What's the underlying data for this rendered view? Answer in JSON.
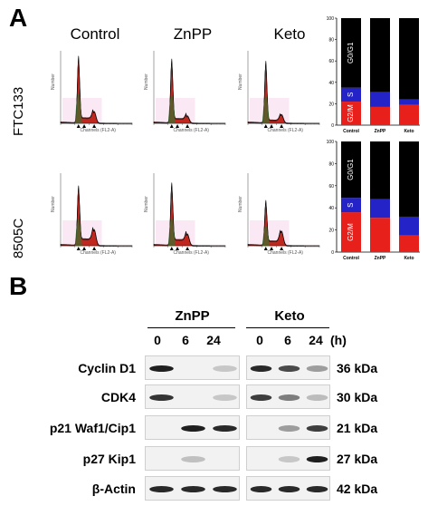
{
  "panel_a": {
    "letter": "A",
    "conditions": [
      "Control",
      "ZnPP",
      "Keto"
    ],
    "cell_lines": [
      "FTC133",
      "8505C"
    ],
    "histogram_axis": {
      "x_title": "Channels (FL2-A)",
      "y_title": "Number"
    },
    "bar_chart": {
      "x_ticks": [
        "Control",
        "ZnPP",
        "Keto"
      ],
      "y_ticks": [
        "100",
        "80",
        "60",
        "40",
        "20",
        "0"
      ],
      "phase_labels": [
        "G0/G1",
        "S",
        "G2/M"
      ],
      "colors": {
        "G0/G1": "#000000",
        "S": "#2323c8",
        "G2/M": "#e8201c"
      }
    }
  },
  "chart_data": [
    {
      "type": "bar",
      "stacked": true,
      "cell_line": "FTC133",
      "categories": [
        "Control",
        "ZnPP",
        "Keto"
      ],
      "series": [
        {
          "name": "G2/M",
          "values": [
            22,
            17,
            19
          ]
        },
        {
          "name": "S",
          "values": [
            13,
            14,
            5
          ]
        },
        {
          "name": "G0/G1",
          "values": [
            65,
            69,
            76
          ]
        }
      ],
      "ylim": [
        0,
        100
      ]
    },
    {
      "type": "bar",
      "stacked": true,
      "cell_line": "8505C",
      "categories": [
        "Control",
        "ZnPP",
        "Keto"
      ],
      "series": [
        {
          "name": "G2/M",
          "values": [
            36,
            31,
            15
          ]
        },
        {
          "name": "S",
          "values": [
            13,
            17,
            17
          ]
        },
        {
          "name": "G0/G1",
          "values": [
            51,
            52,
            68
          ]
        }
      ],
      "ylim": [
        0,
        100
      ]
    }
  ],
  "panel_b": {
    "letter": "B",
    "groups": [
      "ZnPP",
      "Keto"
    ],
    "lanes": [
      "0",
      "6",
      "24"
    ],
    "time_unit": "(h)",
    "rows": [
      {
        "protein": "Cyclin D1",
        "kda": "36 kDa",
        "znpp": [
          0.95,
          0.0,
          0.15
        ],
        "keto": [
          0.9,
          0.75,
          0.35
        ]
      },
      {
        "protein": "CDK4",
        "kda": "30 kDa",
        "znpp": [
          0.85,
          0.0,
          0.15
        ],
        "keto": [
          0.8,
          0.5,
          0.2
        ]
      },
      {
        "protein": "p21 Waf1/Cip1",
        "kda": "21 kDa",
        "znpp": [
          0.0,
          0.95,
          0.9
        ],
        "keto": [
          0.0,
          0.35,
          0.8
        ]
      },
      {
        "protein": "p27 Kip1",
        "kda": "27 kDa",
        "znpp": [
          0.0,
          0.18,
          0.0
        ],
        "keto": [
          0.0,
          0.15,
          0.95
        ]
      },
      {
        "protein": "β-Actin",
        "kda": "42 kDa",
        "znpp": [
          0.9,
          0.9,
          0.9
        ],
        "keto": [
          0.9,
          0.9,
          0.9
        ]
      }
    ]
  }
}
